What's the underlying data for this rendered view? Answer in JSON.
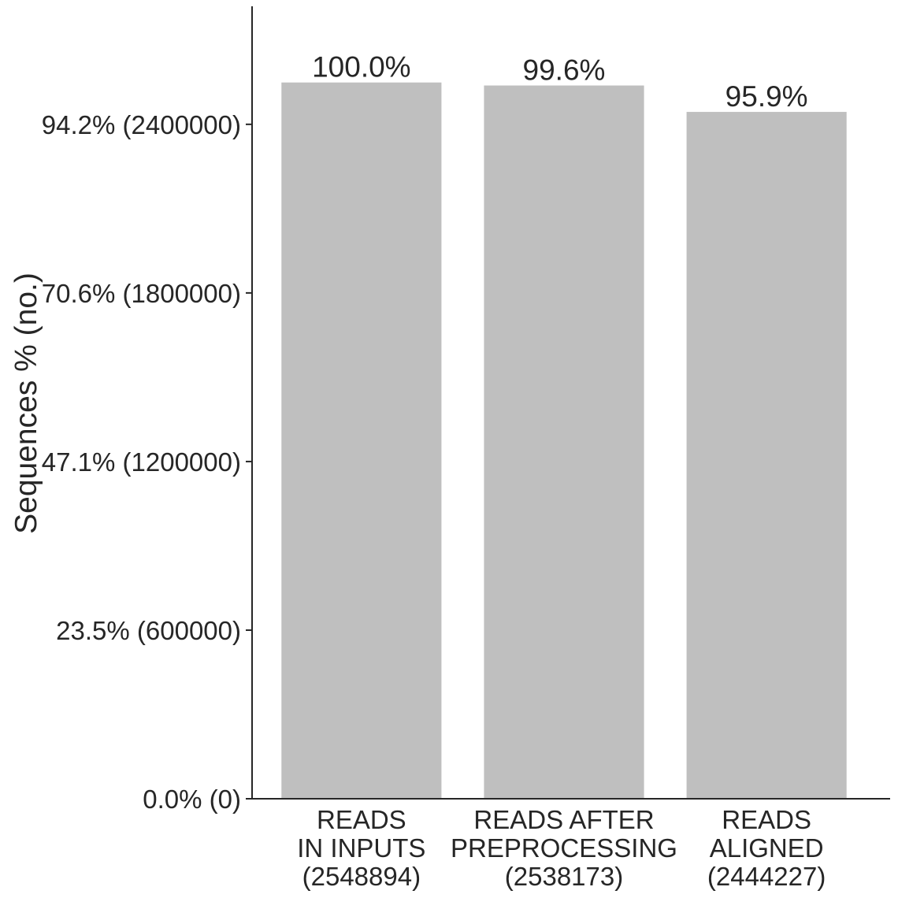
{
  "chart_data": {
    "type": "bar",
    "title": "",
    "xlabel": "",
    "ylabel": "Sequences % (no.)",
    "ylim": [
      0,
      2820000
    ],
    "grid": false,
    "legend": "none",
    "bar_color": "#bfbfbf",
    "axis_color": "#262626",
    "yticks": [
      {
        "value": 0,
        "label": "0.0% (0)"
      },
      {
        "value": 600000,
        "label": "23.5% (600000)"
      },
      {
        "value": 1200000,
        "label": "47.1% (1200000)"
      },
      {
        "value": 1800000,
        "label": "70.6% (1800000)"
      },
      {
        "value": 2400000,
        "label": "94.2% (2400000)"
      }
    ],
    "categories": [
      [
        "READS",
        "IN INPUTS",
        "(2548894)"
      ],
      [
        "READS AFTER",
        "PREPROCESSING",
        "(2538173)"
      ],
      [
        "READS",
        "ALIGNED",
        "(2444227)"
      ]
    ],
    "values": [
      2548894,
      2538173,
      2444227
    ],
    "data_labels": [
      "100.0%",
      "99.6%",
      "95.9%"
    ]
  }
}
